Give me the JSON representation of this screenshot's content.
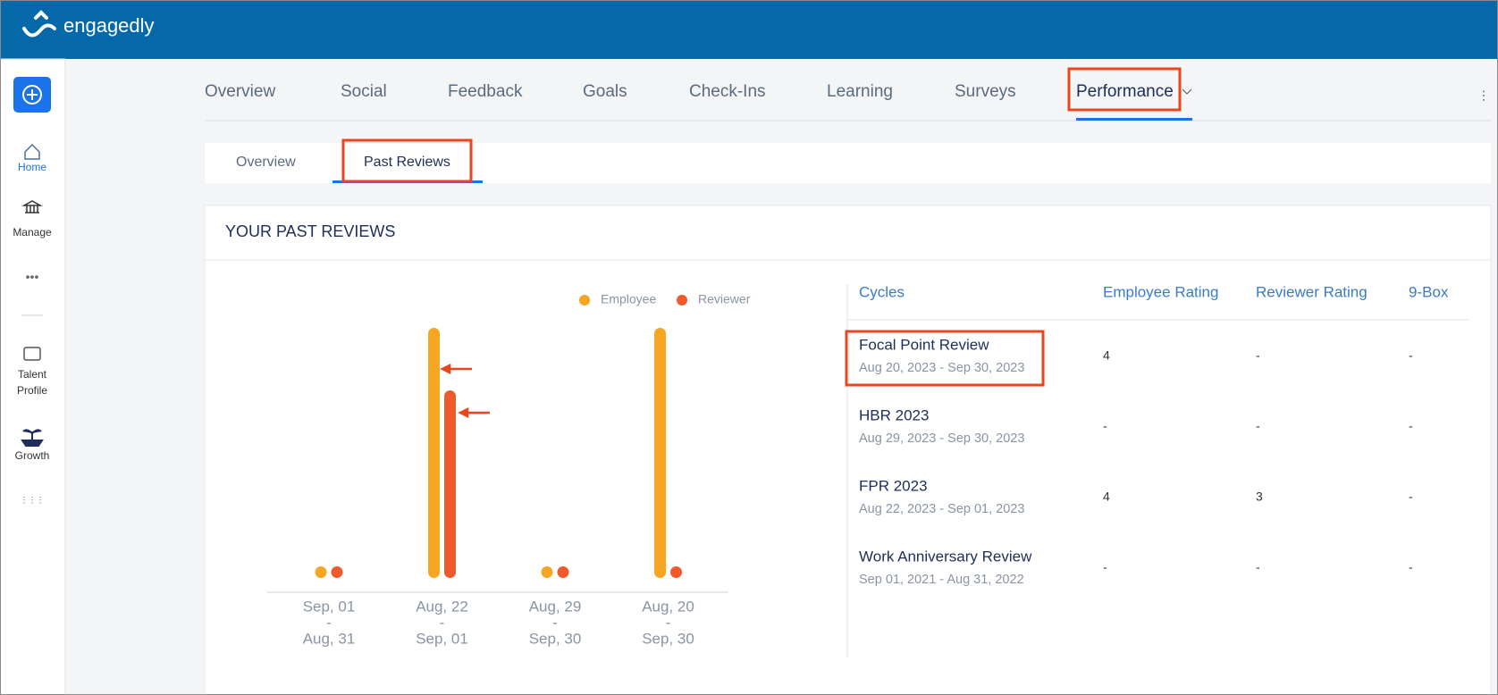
{
  "header": {
    "logo": "engagedly"
  },
  "sidebar": [
    [
      "Home"
    ],
    [
      "Manage"
    ],
    [
      "Talent",
      "Profile"
    ],
    [
      "Growth"
    ]
  ],
  "tabs": [
    "Overview",
    "Social",
    "Feedback",
    "Goals",
    "Check-Ins",
    "Learning",
    "Surveys",
    "Performance"
  ],
  "subtabs": [
    "Overview",
    "Past Reviews"
  ],
  "card": {
    "title": "YOUR PAST REVIEWS"
  },
  "chart_data": {
    "type": "bar",
    "categories": [
      [
        "Sep, 01",
        "-",
        "Aug, 31"
      ],
      [
        "Aug, 22",
        "-",
        "Sep, 01"
      ],
      [
        "Aug, 29",
        "-",
        "Sep, 30"
      ],
      [
        "Aug, 20",
        "-",
        "Sep, 30"
      ]
    ],
    "series": [
      {
        "name": "Employee",
        "color": "#f5a623",
        "values": [
          0,
          4,
          0,
          4
        ]
      },
      {
        "name": "Reviewer",
        "color": "#ee5a2b",
        "values": [
          0,
          3,
          0,
          0
        ]
      }
    ],
    "ylim": [
      0,
      4
    ]
  },
  "table": {
    "columns": [
      "Cycles",
      "Employee Rating",
      "Reviewer Rating",
      "9-Box"
    ],
    "rows": [
      [
        "Focal Point Review",
        "Aug 20, 2023 - Sep 30, 2023",
        "4",
        "-",
        "-"
      ],
      [
        "HBR 2023",
        "Aug 29, 2023 - Sep 30, 2023",
        "-",
        "-",
        "-"
      ],
      [
        "FPR 2023",
        "Aug 22, 2023 - Sep 01, 2023",
        "4",
        "3",
        "-"
      ],
      [
        "Work Anniversary Review",
        "Sep 01, 2021 - Aug 31, 2022",
        "-",
        "-",
        "-"
      ]
    ]
  }
}
